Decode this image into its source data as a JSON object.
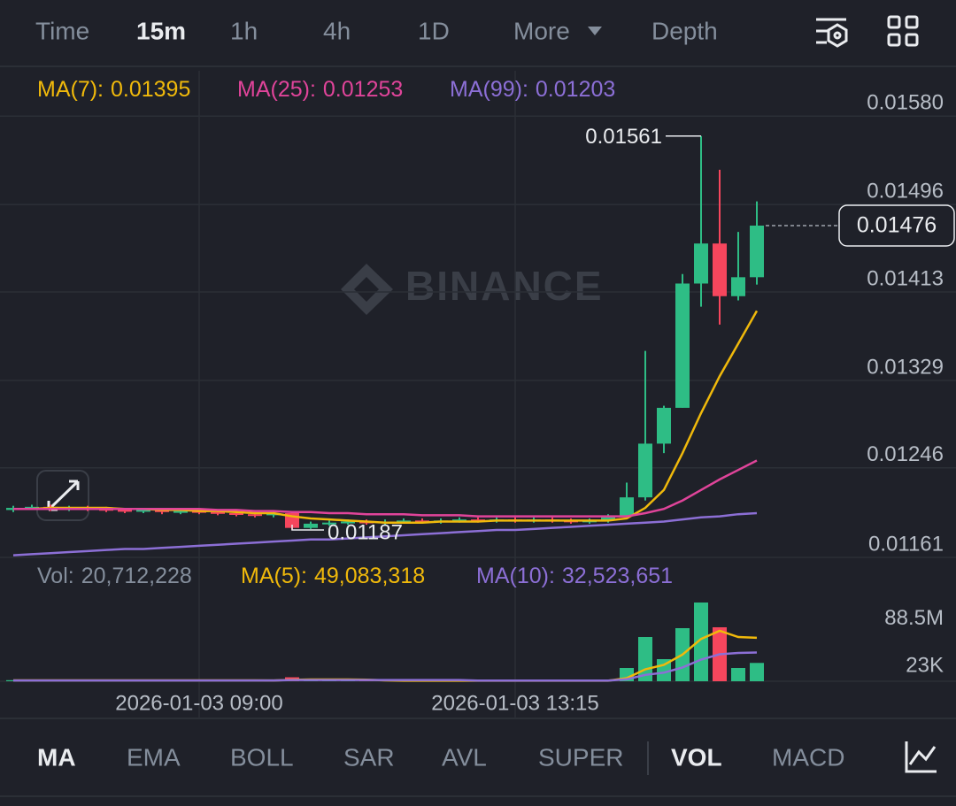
{
  "top_tabs": [
    {
      "label": "Time",
      "active": false
    },
    {
      "label": "15m",
      "active": true
    },
    {
      "label": "1h",
      "active": false
    },
    {
      "label": "4h",
      "active": false
    },
    {
      "label": "1D",
      "active": false
    },
    {
      "label": "More",
      "active": false
    },
    {
      "label": "Depth",
      "active": false
    }
  ],
  "indicator_tabs": [
    {
      "label": "MA",
      "active": true
    },
    {
      "label": "EMA",
      "active": false
    },
    {
      "label": "BOLL",
      "active": false
    },
    {
      "label": "SAR",
      "active": false
    },
    {
      "label": "AVL",
      "active": false
    },
    {
      "label": "SUPER",
      "active": false
    },
    {
      "label": "VOL",
      "active": true
    },
    {
      "label": "MACD",
      "active": false
    }
  ],
  "chart_data": {
    "type": "candlestick",
    "watermark": "BINANCE",
    "x": [
      null,
      null,
      null,
      null,
      null,
      null,
      null,
      null,
      null,
      null,
      "2026-01-03 09:00",
      null,
      null,
      null,
      null,
      null,
      null,
      null,
      null,
      null,
      null,
      null,
      null,
      null,
      null,
      null,
      null,
      "2026-01-03 13:15",
      null,
      null,
      null,
      null,
      null,
      null,
      null,
      null,
      null,
      null,
      null,
      null,
      null
    ],
    "open": [
      0.01206,
      0.01208,
      0.01209,
      0.01207,
      0.01208,
      0.01207,
      0.01206,
      0.01205,
      0.01206,
      0.01204,
      0.01205,
      0.01204,
      0.01203,
      0.01202,
      0.01201,
      0.01203,
      0.01189,
      0.01193,
      0.01194,
      0.01195,
      0.01194,
      0.01195,
      0.01196,
      0.01195,
      0.01196,
      0.01197,
      0.01196,
      0.01197,
      0.01196,
      0.01197,
      0.01196,
      0.01195,
      0.01196,
      0.012,
      0.01218,
      0.01269,
      0.01303,
      0.01421,
      0.01459,
      0.01409,
      0.01427
    ],
    "high": [
      0.0121,
      0.01211,
      0.01211,
      0.0121,
      0.0121,
      0.01209,
      0.01208,
      0.01208,
      0.01208,
      0.01207,
      0.01207,
      0.01206,
      0.01205,
      0.01204,
      0.01205,
      0.01205,
      0.01195,
      0.01196,
      0.01197,
      0.01197,
      0.01197,
      0.01198,
      0.01198,
      0.01198,
      0.01199,
      0.01199,
      0.01199,
      0.01199,
      0.01199,
      0.01199,
      0.01198,
      0.01198,
      0.01202,
      0.01232,
      0.01357,
      0.01305,
      0.0143,
      0.01561,
      0.01529,
      0.0147,
      0.01499
    ],
    "low": [
      0.01204,
      0.01206,
      0.01205,
      0.01205,
      0.01205,
      0.01204,
      0.01203,
      0.01203,
      0.01202,
      0.01202,
      0.01202,
      0.01201,
      0.012,
      0.01199,
      0.01199,
      0.01187,
      0.01188,
      0.01191,
      0.01192,
      0.01192,
      0.01192,
      0.01193,
      0.01193,
      0.01193,
      0.01194,
      0.01194,
      0.01194,
      0.01194,
      0.01194,
      0.01194,
      0.01193,
      0.01193,
      0.01194,
      0.01199,
      0.01215,
      0.0126,
      0.01303,
      0.01399,
      0.01382,
      0.01405,
      0.0142
    ],
    "close": [
      0.01208,
      0.01209,
      0.01207,
      0.01208,
      0.01207,
      0.01206,
      0.01205,
      0.01206,
      0.01204,
      0.01205,
      0.01204,
      0.01203,
      0.01202,
      0.01201,
      0.01203,
      0.01189,
      0.01193,
      0.01194,
      0.01195,
      0.01194,
      0.01195,
      0.01196,
      0.01195,
      0.01196,
      0.01197,
      0.01196,
      0.01197,
      0.01196,
      0.01197,
      0.01196,
      0.01195,
      0.01196,
      0.012,
      0.01218,
      0.01269,
      0.01303,
      0.01421,
      0.01459,
      0.01409,
      0.01427,
      0.01476
    ],
    "up_color": "#2ebd85",
    "down_color": "#f6465d",
    "ylim": [
      0.01161,
      0.01623
    ],
    "yticks": [
      {
        "value": 0.0158,
        "label": "0.01580"
      },
      0.01496,
      0.01413,
      0.01329,
      0.01246,
      0.01161
    ],
    "grid": true,
    "series": [
      {
        "name": "MA(7):",
        "color": "#f0b90b",
        "values": [
          0.01207,
          0.01207,
          0.01208,
          0.01208,
          0.01208,
          0.01208,
          0.01207,
          0.01207,
          0.01206,
          0.01206,
          0.01205,
          0.01205,
          0.01204,
          0.01203,
          0.01203,
          0.012,
          0.01198,
          0.01197,
          0.01196,
          0.01195,
          0.01194,
          0.01194,
          0.01194,
          0.01195,
          0.01195,
          0.01195,
          0.01196,
          0.01196,
          0.01196,
          0.01196,
          0.01196,
          0.01196,
          0.01196,
          0.01198,
          0.01208,
          0.01225,
          0.0126,
          0.01298,
          0.01333,
          0.01364,
          0.01395
        ]
      },
      {
        "name": "MA(25):",
        "color": "#e0449a",
        "values": [
          0.01207,
          0.01207,
          0.01207,
          0.01207,
          0.01207,
          0.01207,
          0.01207,
          0.01207,
          0.01207,
          0.01207,
          0.01207,
          0.01206,
          0.01206,
          0.01205,
          0.01205,
          0.01204,
          0.01204,
          0.01203,
          0.01203,
          0.01202,
          0.01202,
          0.01202,
          0.01201,
          0.01201,
          0.01201,
          0.012,
          0.012,
          0.012,
          0.012,
          0.012,
          0.012,
          0.012,
          0.012,
          0.012,
          0.01203,
          0.01207,
          0.01215,
          0.01225,
          0.01235,
          0.01244,
          0.01253
        ]
      },
      {
        "name": "MA(99):",
        "color": "#8c6fd6",
        "values": [
          0.01163,
          0.01164,
          0.01165,
          0.01166,
          0.01167,
          0.01168,
          0.01169,
          0.01169,
          0.0117,
          0.01171,
          0.01172,
          0.01173,
          0.01174,
          0.01175,
          0.01176,
          0.01177,
          0.01178,
          0.01178,
          0.01179,
          0.0118,
          0.01181,
          0.01182,
          0.01183,
          0.01184,
          0.01185,
          0.01186,
          0.01187,
          0.01187,
          0.01188,
          0.01189,
          0.0119,
          0.01191,
          0.01192,
          0.01193,
          0.01194,
          0.01195,
          0.01197,
          0.01199,
          0.012,
          0.01202,
          0.01203
        ]
      }
    ]
  },
  "volume_chart": {
    "type": "bar",
    "name": "Vol:",
    "values": [
      1200000,
      900000,
      800000,
      1100000,
      700000,
      600000,
      900000,
      500000,
      700000,
      600000,
      800000,
      500000,
      600000,
      700000,
      1500000,
      4500000,
      2200000,
      1000000,
      800000,
      700000,
      600000,
      500000,
      700000,
      600000,
      500000,
      800000,
      600000,
      500000,
      700000,
      600000,
      500000,
      900000,
      1000000,
      15000000,
      50000000,
      25000000,
      60000000,
      89000000,
      61000000,
      15000000,
      20712228
    ],
    "value_label": "20,712,228",
    "ylim": [
      0,
      90000000
    ],
    "yticks": [
      {
        "value": 88500000,
        "label": "88.5M"
      },
      {
        "value": 23000,
        "label": "23K"
      }
    ],
    "series": [
      {
        "name": "MA(5):",
        "color": "#f0b90b",
        "value_label": "49,083,318",
        "values": [
          1000000,
          1000000,
          1000000,
          1000000,
          1000000,
          1000000,
          1000000,
          1000000,
          1000000,
          1000000,
          1000000,
          1000000,
          1000000,
          1000000,
          900000,
          1600000,
          2000000,
          2000000,
          2000000,
          1800000,
          1000000,
          600000,
          600000,
          600000,
          600000,
          600000,
          600000,
          600000,
          600000,
          600000,
          600000,
          600000,
          600000,
          3500000,
          13500000,
          18500000,
          30200000,
          47800000,
          57000000,
          50000000,
          49083318
        ]
      },
      {
        "name": "MA(10):",
        "color": "#8c6fd6",
        "value_label": "32,523,651",
        "values": [
          900000,
          900000,
          900000,
          900000,
          900000,
          900000,
          900000,
          900000,
          900000,
          900000,
          900000,
          900000,
          900000,
          900000,
          900000,
          1400000,
          1400000,
          1400000,
          1400000,
          1400000,
          1400000,
          1400000,
          1400000,
          1400000,
          1400000,
          800000,
          800000,
          800000,
          800000,
          800000,
          800000,
          800000,
          800000,
          2300000,
          7200000,
          9700000,
          15600000,
          24500000,
          30500000,
          32000000,
          32523651
        ]
      }
    ]
  }
}
